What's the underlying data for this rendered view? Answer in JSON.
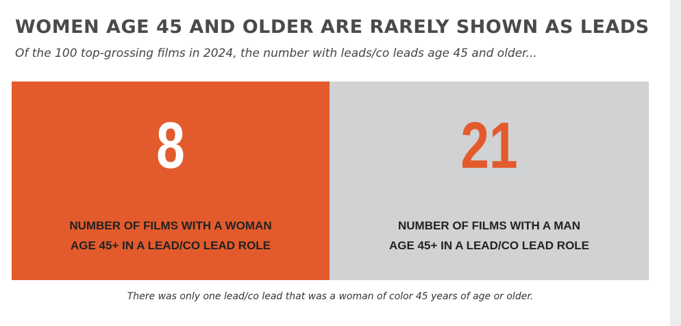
{
  "title": "WOMEN AGE 45 AND OLDER ARE RARELY SHOWN AS LEADS",
  "subtitle": "Of the 100 top-grossing films in 2024, the number with leads/co leads age 45 and older...",
  "footnote": "There was only one lead/co lead that was a woman of color 45 years of age or older.",
  "colors": {
    "accent": "#e35b2d",
    "neutral_panel": "#d1d2d3",
    "title_text": "#4a4a4a"
  },
  "chart_data": {
    "type": "table",
    "title": "WOMEN AGE 45 AND OLDER ARE RARELY SHOWN AS LEADS",
    "subtitle": "Of the 100 top-grossing films in 2024, the number with leads/co leads age 45 and older...",
    "panels": [
      {
        "value": 8,
        "value_text": "8",
        "label_line1": "NUMBER OF FILMS WITH A WOMAN",
        "label_line2": "AGE 45+ IN A LEAD/CO LEAD ROLE",
        "background": "#e35b2d",
        "value_color": "#ffffff"
      },
      {
        "value": 21,
        "value_text": "21",
        "label_line1": "NUMBER OF FILMS WITH A MAN",
        "label_line2": "AGE 45+ IN A LEAD/CO LEAD ROLE",
        "background": "#d1d2d3",
        "value_color": "#e35b2d"
      }
    ]
  }
}
